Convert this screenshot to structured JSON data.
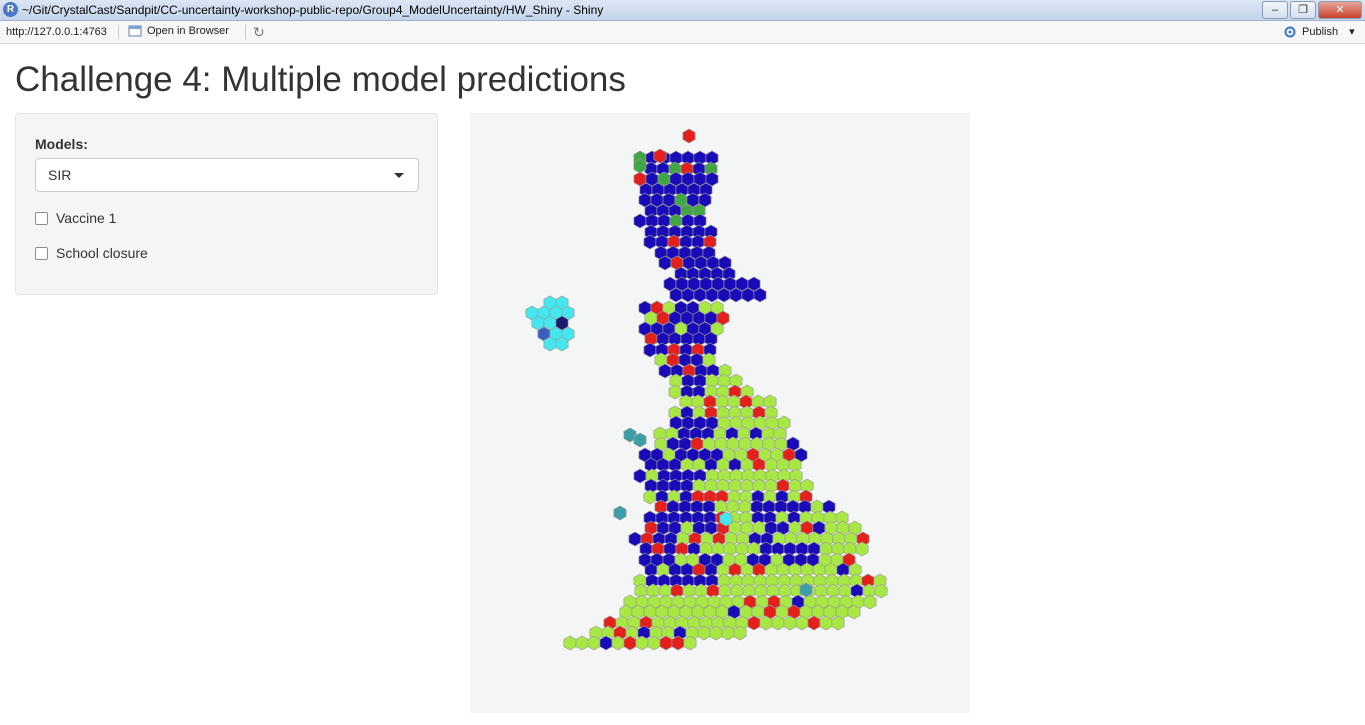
{
  "window": {
    "title": "~/Git/CrystalCast/Sandpit/CC-uncertainty-workshop-public-repo/Group4_ModelUncertainty/HW_Shiny - Shiny",
    "app_icon": "R",
    "minimize": "–",
    "maximize": "❐",
    "close": "✕"
  },
  "toolbar": {
    "url": "http://127.0.0.1:4763",
    "open_in_browser": "Open in Browser",
    "refresh_icon": "↻",
    "publish": "Publish",
    "publish_caret": "▾"
  },
  "page": {
    "title": "Challenge 4: Multiple model predictions"
  },
  "sidebar": {
    "models_label": "Models:",
    "models_selected": "SIR",
    "checkboxes": [
      {
        "label": "Vaccine 1",
        "checked": false
      },
      {
        "label": "School closure",
        "checked": false
      }
    ]
  },
  "map": {
    "type": "hex-map",
    "colors": {
      "lime": "#a8e844",
      "blue": "#1a0bb8",
      "red": "#e3201b",
      "green": "#3fa845",
      "cyan": "#45e7ee",
      "teal": "#3c9fa8",
      "navy": "#1a1a6e",
      "mid_blue": "#3a5ec0",
      "background": "#f4f5f5"
    }
  }
}
